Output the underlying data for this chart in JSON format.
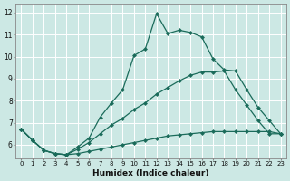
{
  "xlabel": "Humidex (Indice chaleur)",
  "bg_color": "#cce8e4",
  "line_color": "#1a6b5a",
  "line1_x": [
    0,
    1,
    2,
    3,
    4,
    5,
    6,
    7,
    8,
    9,
    10,
    11,
    12,
    13,
    14,
    15,
    16,
    17,
    18,
    19,
    20,
    21,
    22,
    23
  ],
  "line1_y": [
    6.7,
    6.2,
    5.75,
    5.6,
    5.55,
    5.6,
    5.7,
    5.8,
    5.9,
    6.0,
    6.1,
    6.2,
    6.3,
    6.4,
    6.45,
    6.5,
    6.55,
    6.6,
    6.6,
    6.6,
    6.6,
    6.6,
    6.6,
    6.5
  ],
  "line2_x": [
    0,
    1,
    2,
    3,
    4,
    5,
    6,
    7,
    8,
    9,
    10,
    11,
    12,
    13,
    14,
    15,
    16,
    17,
    18,
    19,
    20,
    21,
    22,
    23
  ],
  "line2_y": [
    6.7,
    6.2,
    5.75,
    5.6,
    5.55,
    5.8,
    6.1,
    6.5,
    6.9,
    7.2,
    7.6,
    7.9,
    8.3,
    8.6,
    8.9,
    9.15,
    9.3,
    9.3,
    9.35,
    8.5,
    7.8,
    7.1,
    6.5,
    6.5
  ],
  "line3_x": [
    0,
    1,
    2,
    3,
    4,
    5,
    6,
    7,
    8,
    9,
    10,
    11,
    12,
    13,
    14,
    15,
    16,
    17,
    18,
    19,
    20,
    21,
    22,
    23
  ],
  "line3_y": [
    6.7,
    6.2,
    5.75,
    5.6,
    5.55,
    5.9,
    6.3,
    7.25,
    7.9,
    8.5,
    10.05,
    10.35,
    11.95,
    11.05,
    11.2,
    11.1,
    10.9,
    9.9,
    9.4,
    9.35,
    8.5,
    7.7,
    7.1,
    6.5
  ],
  "xlim": [
    -0.5,
    23.5
  ],
  "ylim": [
    5.4,
    12.4
  ],
  "yticks": [
    6,
    7,
    8,
    9,
    10,
    11,
    12
  ],
  "xticks": [
    0,
    1,
    2,
    3,
    4,
    5,
    6,
    7,
    8,
    9,
    10,
    11,
    12,
    13,
    14,
    15,
    16,
    17,
    18,
    19,
    20,
    21,
    22,
    23
  ],
  "markersize": 2.5,
  "linewidth": 0.9
}
